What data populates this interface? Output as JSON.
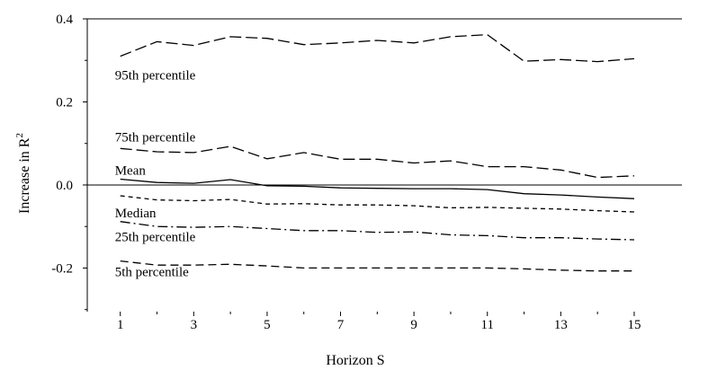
{
  "chart_data": {
    "type": "line",
    "title": "",
    "xlabel": "Horizon S",
    "ylabel_main": "Increase in R",
    "ylabel_sup": "2",
    "x": [
      1,
      2,
      3,
      4,
      5,
      6,
      7,
      8,
      9,
      10,
      11,
      12,
      13,
      14,
      15
    ],
    "xlim": [
      0.1,
      16.3
    ],
    "ylim": [
      -0.305,
      0.4
    ],
    "xticks": [
      1,
      3,
      5,
      7,
      9,
      11,
      13,
      15
    ],
    "xtick_labels": [
      "1",
      "3",
      "5",
      "7",
      "9",
      "11",
      "13",
      "15"
    ],
    "yticks": [
      0.4,
      0.2,
      0.0,
      -0.2
    ],
    "ytick_labels": [
      "0.4",
      "0.2",
      "0.0",
      "-0.2"
    ],
    "zero_line": true,
    "grid": false,
    "series": [
      {
        "name": "95th percentile",
        "dash": "long",
        "values": [
          0.31,
          0.345,
          0.336,
          0.357,
          0.353,
          0.338,
          0.342,
          0.348,
          0.342,
          0.357,
          0.362,
          0.298,
          0.302,
          0.297,
          0.304
        ]
      },
      {
        "name": "75th percentile",
        "dash": "long",
        "values": [
          0.088,
          0.08,
          0.078,
          0.093,
          0.063,
          0.078,
          0.062,
          0.062,
          0.053,
          0.058,
          0.044,
          0.044,
          0.036,
          0.018,
          0.022
        ]
      },
      {
        "name": "Mean",
        "dash": "solid",
        "values": [
          0.014,
          0.006,
          0.004,
          0.013,
          -0.002,
          -0.003,
          -0.007,
          -0.008,
          -0.009,
          -0.009,
          -0.011,
          -0.021,
          -0.024,
          -0.029,
          -0.033
        ]
      },
      {
        "name": "Median",
        "dash": "short",
        "values": [
          -0.026,
          -0.036,
          -0.038,
          -0.035,
          -0.046,
          -0.045,
          -0.048,
          -0.048,
          -0.05,
          -0.055,
          -0.054,
          -0.056,
          -0.058,
          -0.062,
          -0.065
        ]
      },
      {
        "name": "25th percentile",
        "dash": "dashdot",
        "values": [
          -0.088,
          -0.1,
          -0.102,
          -0.1,
          -0.105,
          -0.11,
          -0.11,
          -0.114,
          -0.113,
          -0.12,
          -0.122,
          -0.127,
          -0.127,
          -0.13,
          -0.132
        ]
      },
      {
        "name": "5th percentile",
        "dash": "medium",
        "values": [
          -0.183,
          -0.193,
          -0.193,
          -0.191,
          -0.195,
          -0.2,
          -0.2,
          -0.2,
          -0.2,
          -0.2,
          -0.2,
          -0.202,
          -0.205,
          -0.207,
          -0.207
        ]
      }
    ]
  }
}
